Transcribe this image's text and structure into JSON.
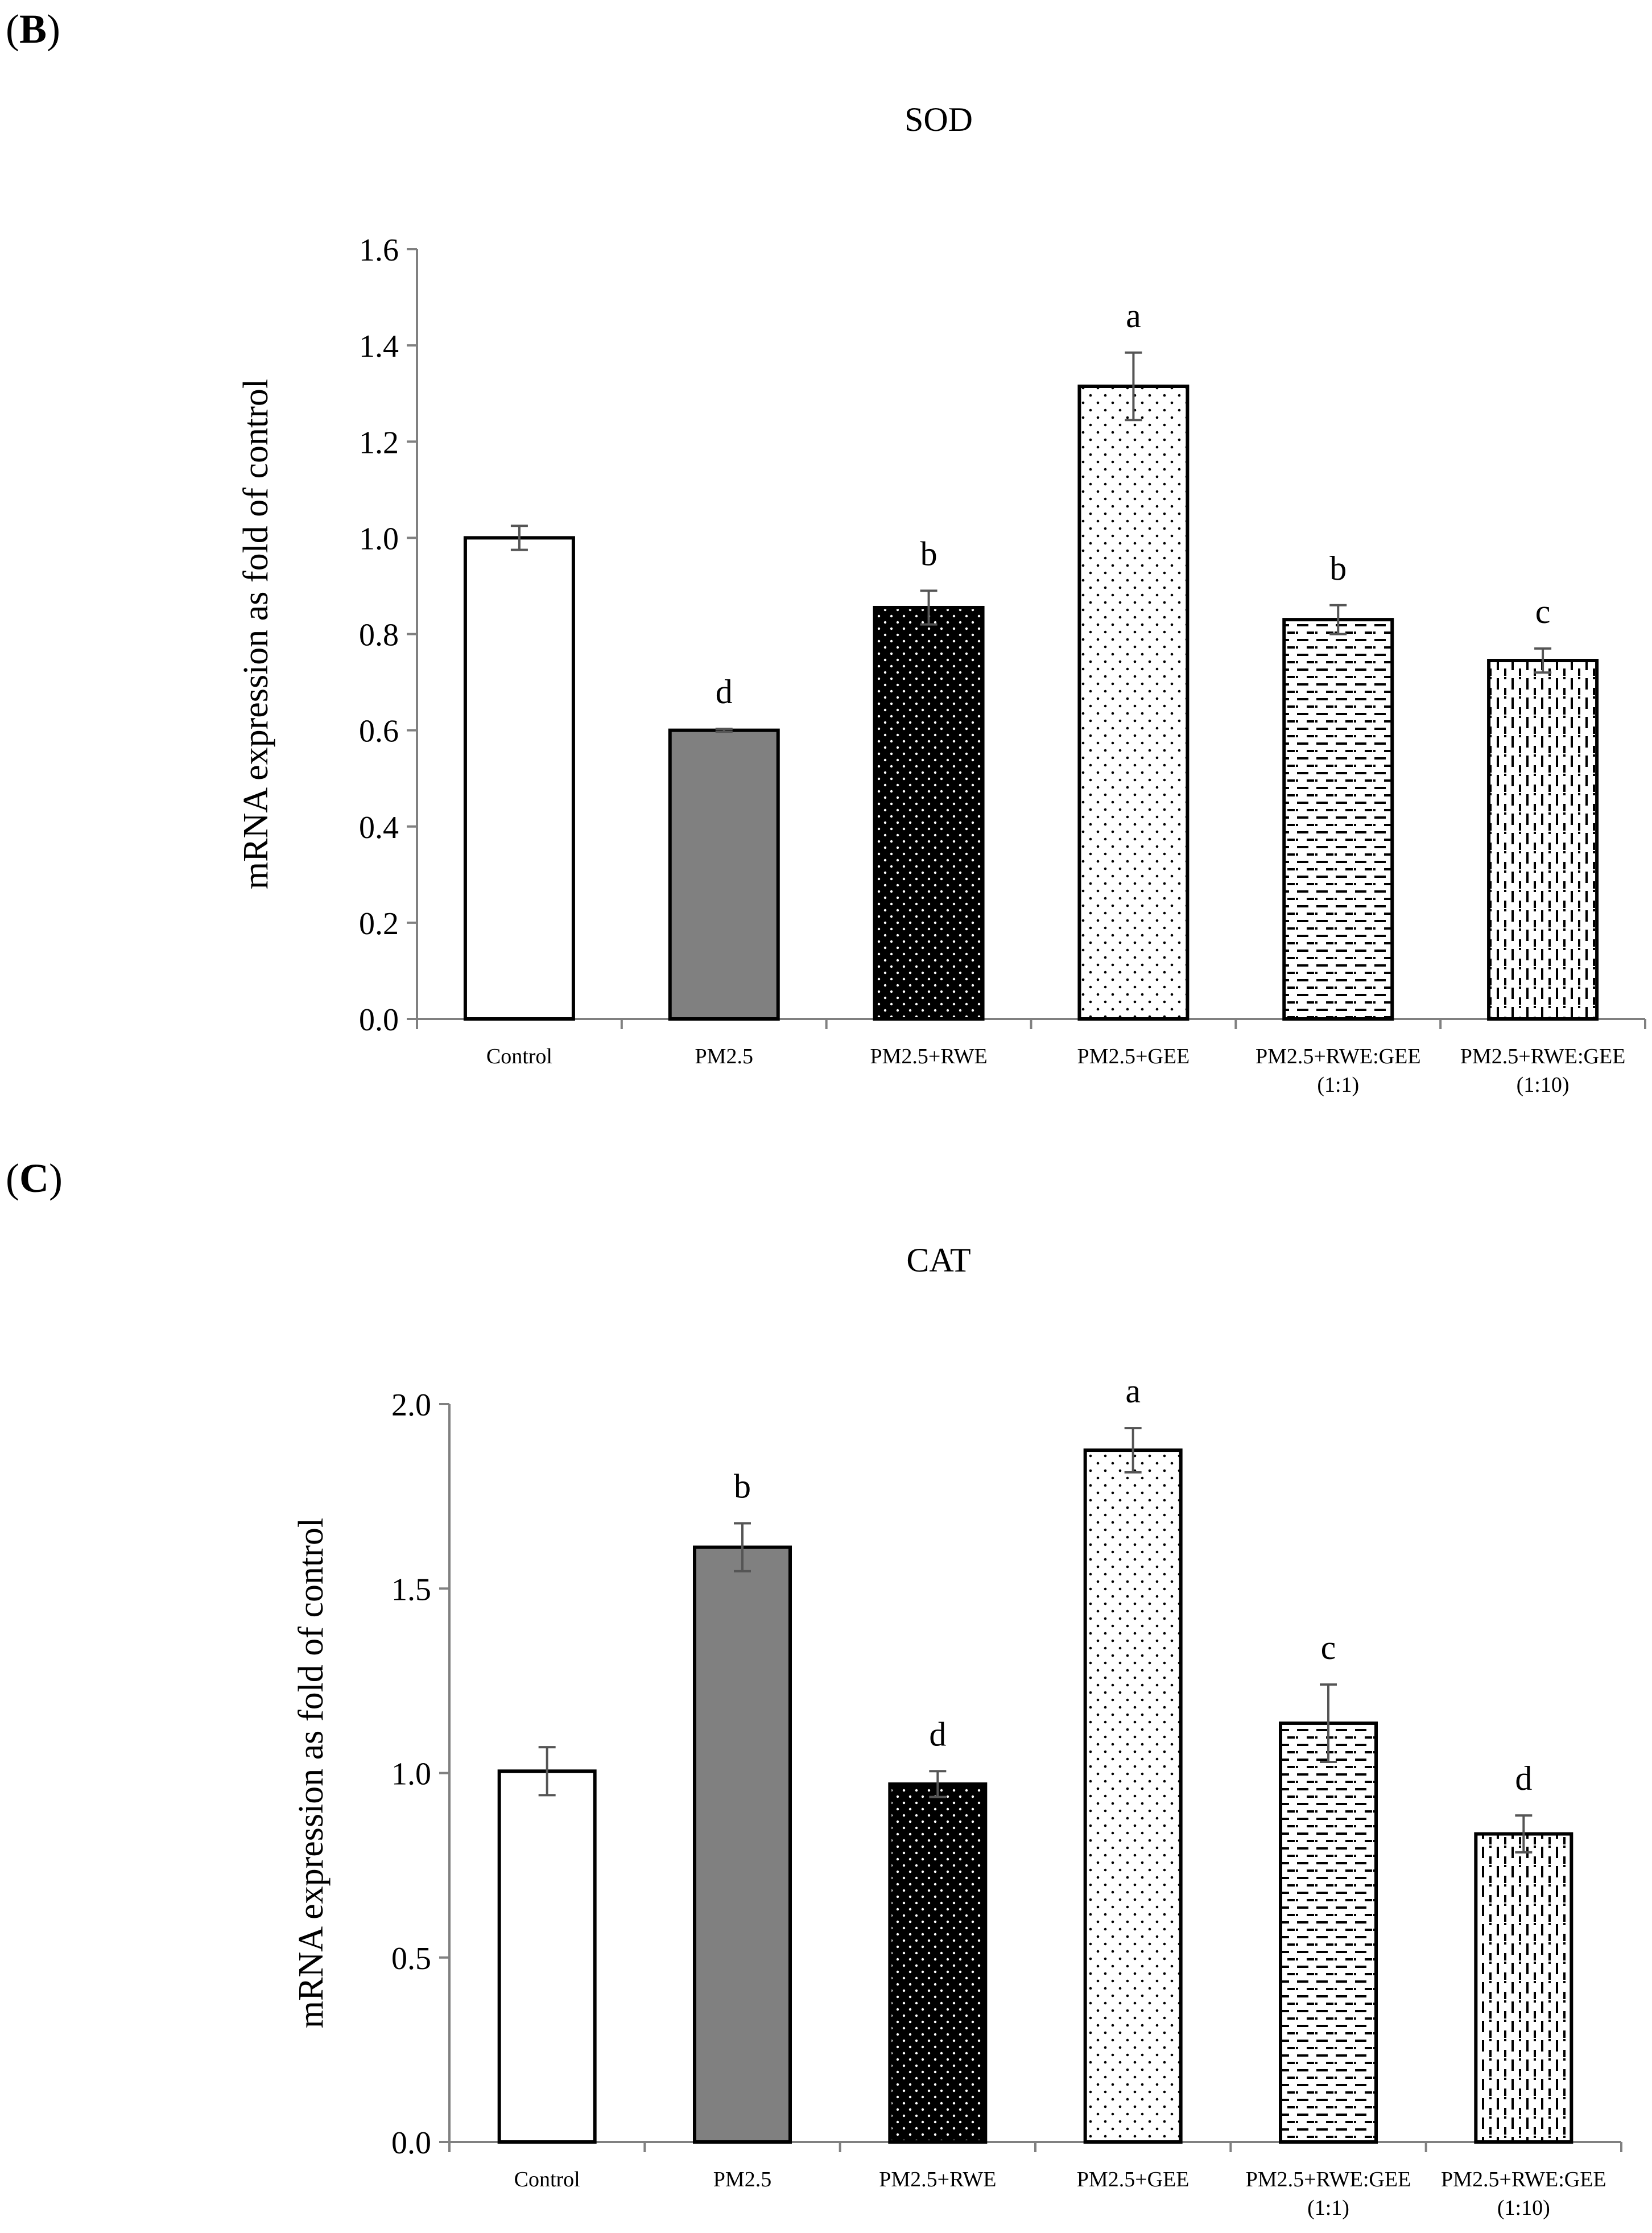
{
  "chart_data": [
    {
      "panel_label": "B",
      "type": "bar",
      "title": "SOD",
      "xlabel": "",
      "ylabel": "mRNA expression as fold of control",
      "ylim": [
        0,
        1.6
      ],
      "yticks": [
        "0.0",
        "0.2",
        "0.4",
        "0.6",
        "0.8",
        "1.0",
        "1.2",
        "1.4",
        "1.6"
      ],
      "ytick_values": [
        0,
        0.2,
        0.4,
        0.6,
        0.8,
        1.0,
        1.2,
        1.4,
        1.6
      ],
      "grid": false,
      "categories": [
        {
          "line1": "Control",
          "line2": ""
        },
        {
          "line1": "PM2.5",
          "line2": ""
        },
        {
          "line1": "PM2.5+RWE",
          "line2": ""
        },
        {
          "line1": "PM2.5+GEE",
          "line2": ""
        },
        {
          "line1": "PM2.5+RWE:GEE",
          "line2": "(1:1)"
        },
        {
          "line1": "PM2.5+RWE:GEE",
          "line2": "(1:10)"
        }
      ],
      "values": [
        1.0,
        0.6,
        0.855,
        1.315,
        0.83,
        0.745
      ],
      "errors": [
        0.025,
        0.003,
        0.035,
        0.07,
        0.03,
        0.025
      ],
      "labels": [
        "",
        "d",
        "b",
        "a",
        "b",
        "c"
      ],
      "patterns": [
        "white",
        "gray",
        "black-dots",
        "sparse-dots",
        "h-dashes",
        "v-dashes"
      ]
    },
    {
      "panel_label": "C",
      "type": "bar",
      "title": "CAT",
      "xlabel": "",
      "ylabel": "mRNA expression as fold of control",
      "ylim": [
        0,
        2.0
      ],
      "yticks": [
        "0.0",
        "0.5",
        "1.0",
        "1.5",
        "2.0"
      ],
      "ytick_values": [
        0,
        0.5,
        1.0,
        1.5,
        2.0
      ],
      "grid": false,
      "categories": [
        {
          "line1": "Control",
          "line2": ""
        },
        {
          "line1": "PM2.5",
          "line2": ""
        },
        {
          "line1": "PM2.5+RWE",
          "line2": ""
        },
        {
          "line1": "PM2.5+GEE",
          "line2": ""
        },
        {
          "line1": "PM2.5+RWE:GEE",
          "line2": "(1:1)"
        },
        {
          "line1": "PM2.5+RWE:GEE",
          "line2": "(1:10)"
        }
      ],
      "values": [
        1.005,
        1.612,
        0.97,
        1.875,
        1.135,
        0.835
      ],
      "errors": [
        0.065,
        0.065,
        0.035,
        0.06,
        0.105,
        0.05
      ],
      "labels": [
        "",
        "b",
        "d",
        "a",
        "c",
        "d"
      ],
      "patterns": [
        "white",
        "gray",
        "black-dots",
        "sparse-dots",
        "h-dashes",
        "v-dashes"
      ]
    }
  ]
}
